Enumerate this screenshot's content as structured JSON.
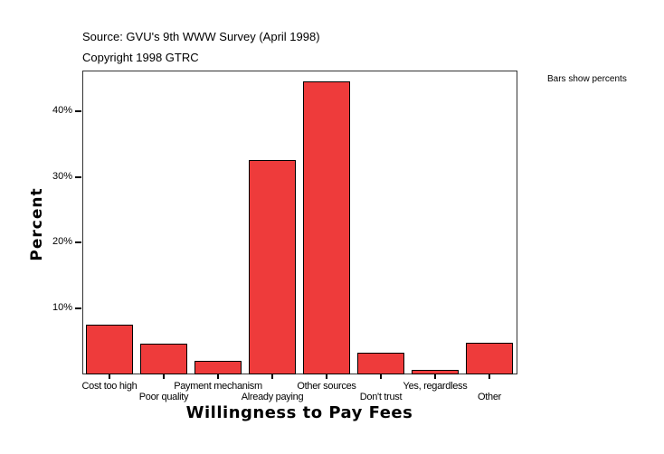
{
  "header": {
    "source": "Source: GVU's 9th WWW Survey (April 1998)",
    "copyright": "Copyright 1998 GTRC"
  },
  "note": "Bars show percents",
  "colors": {
    "bar": "#EE3B3B",
    "border": "#000000"
  },
  "chart_data": {
    "type": "bar",
    "title": "",
    "xlabel": "Willingness to Pay Fees",
    "ylabel": "Percent",
    "categories": [
      "Cost too high",
      "Poor quality",
      "Payment mechanism",
      "Already paying",
      "Other sources",
      "Don't trust",
      "Yes, regardless",
      "Other"
    ],
    "values": [
      7.4,
      4.5,
      2.0,
      32.6,
      44.5,
      3.2,
      0.5,
      4.7
    ],
    "yticks": [
      "10%",
      "20%",
      "30%",
      "40%"
    ],
    "ylim": [
      0,
      46
    ],
    "grid": false,
    "legend": "none",
    "annotation": "Bars show percents"
  }
}
